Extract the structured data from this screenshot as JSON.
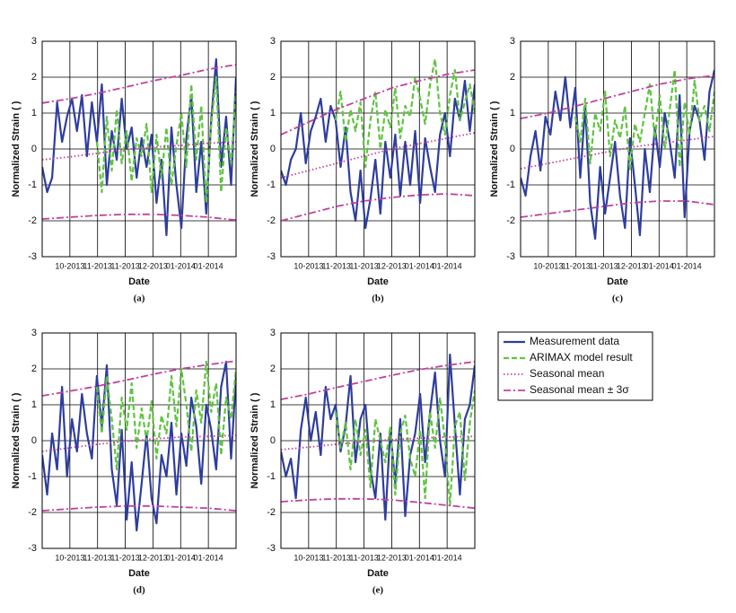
{
  "legend": [
    {
      "name": "Measurement data",
      "color": "#2e3d9e",
      "dash": "none",
      "width": 2.2
    },
    {
      "name": "ARIMAX model result",
      "color": "#5fc43f",
      "dash": "6 3",
      "width": 2.2
    },
    {
      "name": "Seasonal mean",
      "color": "#c2409e",
      "dash": "1.5 2.5",
      "width": 1.8
    },
    {
      "name": "Seasonal mean ± 3σ",
      "color": "#c2409e",
      "dash": "8 3 2 3",
      "width": 1.8
    }
  ],
  "chart_data": [
    {
      "type": "line",
      "caption": "(a)",
      "xlabel": "Date",
      "ylabel": "Normalized Strain ( )",
      "xlim": [
        0,
        7
      ],
      "ylim": [
        -3,
        3
      ],
      "yticks": [
        -3,
        -2,
        -1,
        0,
        1,
        2,
        3
      ],
      "xticks": [
        {
          "value": 1,
          "label": "10-2013"
        },
        {
          "value": 2,
          "label": "11-2013"
        },
        {
          "value": 3,
          "label": "11-2013"
        },
        {
          "value": 4,
          "label": "12-2013"
        },
        {
          "value": 5,
          "label": "01-2014"
        },
        {
          "value": 6,
          "label": "01-2014"
        }
      ],
      "series": [
        {
          "values": [
            -0.5,
            -1.2,
            -0.8,
            1.3,
            0.2,
            0.9,
            1.4,
            0.5,
            1.5,
            -0.2,
            1.3,
            0.2,
            1.8,
            -1.0,
            0.5,
            -0.3,
            1.4,
            0.0,
            0.6,
            -0.8,
            0.3,
            -0.5,
            0.4,
            -1.5,
            -0.3,
            -2.4,
            0.6,
            -1.0,
            -2.2,
            0.3,
            1.5,
            -1.2,
            0.2,
            -1.8,
            0.8,
            2.5,
            -0.5,
            0.9,
            -1.0,
            2.0
          ]
        },
        {
          "values": [
            null,
            null,
            null,
            null,
            null,
            null,
            null,
            null,
            null,
            null,
            null,
            0.2,
            -1.2,
            0.9,
            -0.6,
            1.1,
            -0.4,
            0.5,
            -0.9,
            0.3,
            -0.2,
            0.7,
            -1.2,
            0.4,
            -0.8,
            0.6,
            -1.0,
            0.1,
            1.0,
            -0.5,
            1.8,
            -0.3,
            1.2,
            -1.5,
            0.7,
            2.0,
            -1.2,
            0.6,
            -0.4,
            1.6
          ]
        },
        {
          "values": [
            -0.3,
            -0.22,
            -0.12,
            -0.02,
            0.05,
            0.1,
            0.16,
            0.2
          ]
        },
        {
          "values": [
            1.28,
            1.4,
            1.55,
            1.72,
            1.9,
            2.05,
            2.22,
            2.35
          ],
          "lower": [
            -1.95,
            -1.9,
            -1.85,
            -1.82,
            -1.82,
            -1.85,
            -1.9,
            -1.98
          ]
        }
      ]
    },
    {
      "type": "line",
      "caption": "(b)",
      "xlabel": "Date",
      "ylabel": "Normalized Strain ( )",
      "xlim": [
        0,
        7
      ],
      "ylim": [
        -3,
        3
      ],
      "yticks": [
        -3,
        -2,
        -1,
        0,
        1,
        2,
        3
      ],
      "xticks": [
        {
          "value": 1,
          "label": "10-2013"
        },
        {
          "value": 2,
          "label": "11-2013"
        },
        {
          "value": 3,
          "label": "11-2013"
        },
        {
          "value": 4,
          "label": "12-2013"
        },
        {
          "value": 5,
          "label": "01-2014"
        },
        {
          "value": 6,
          "label": "01-2014"
        }
      ],
      "series": [
        {
          "values": [
            -0.6,
            -1.0,
            -0.3,
            0.0,
            1.0,
            -0.4,
            0.5,
            0.9,
            1.4,
            0.2,
            1.2,
            0.8,
            -0.5,
            0.6,
            -1.2,
            -2.0,
            -0.6,
            -2.2,
            -1.4,
            -0.3,
            -1.8,
            0.2,
            -0.8,
            0.4,
            -1.3,
            0.2,
            -1.0,
            0.5,
            -1.5,
            0.3,
            -0.5,
            -1.2,
            0.4,
            1.0,
            -0.2,
            1.4,
            0.8,
            1.9,
            0.5,
            1.8
          ]
        },
        {
          "values": [
            null,
            null,
            null,
            null,
            null,
            null,
            null,
            null,
            null,
            null,
            null,
            0.8,
            1.6,
            0.2,
            1.1,
            0.5,
            1.3,
            -0.5,
            0.8,
            1.6,
            0.0,
            1.1,
            0.6,
            1.7,
            0.3,
            1.2,
            0.9,
            2.0,
            1.4,
            0.7,
            1.8,
            2.5,
            1.0,
            0.4,
            1.5,
            2.2,
            0.8,
            1.3,
            1.8,
            1.0
          ]
        },
        {
          "values": [
            -0.8,
            -0.6,
            -0.4,
            -0.2,
            0.0,
            0.15,
            0.3,
            0.45
          ]
        },
        {
          "values": [
            0.4,
            0.75,
            1.1,
            1.4,
            1.7,
            1.9,
            2.08,
            2.2
          ],
          "lower": [
            -2.0,
            -1.8,
            -1.6,
            -1.45,
            -1.35,
            -1.28,
            -1.25,
            -1.3
          ]
        }
      ]
    },
    {
      "type": "line",
      "caption": "(c)",
      "xlabel": "Date",
      "ylabel": "Normalized Strain ( )",
      "xlim": [
        0,
        7
      ],
      "ylim": [
        -3,
        3
      ],
      "yticks": [
        -3,
        -2,
        -1,
        0,
        1,
        2,
        3
      ],
      "xticks": [
        {
          "value": 1,
          "label": "10-2013"
        },
        {
          "value": 2,
          "label": "11-2013"
        },
        {
          "value": 3,
          "label": "11-2013"
        },
        {
          "value": 4,
          "label": "12-2013"
        },
        {
          "value": 5,
          "label": "01-2014"
        },
        {
          "value": 6,
          "label": "01-2014"
        }
      ],
      "series": [
        {
          "values": [
            -0.8,
            -1.3,
            -0.2,
            0.5,
            -0.6,
            0.9,
            0.4,
            1.6,
            0.8,
            2.0,
            0.6,
            1.7,
            -0.8,
            1.2,
            -1.5,
            -2.5,
            -0.5,
            -1.8,
            -0.8,
            0.2,
            -1.3,
            -2.2,
            0.3,
            -1.0,
            -2.4,
            0.0,
            -1.2,
            0.6,
            -0.5,
            1.0,
            0.2,
            -0.8,
            1.5,
            -1.9,
            0.5,
            1.2,
            0.8,
            -0.3,
            1.6,
            2.2
          ]
        },
        {
          "values": [
            null,
            null,
            null,
            null,
            null,
            null,
            null,
            null,
            null,
            null,
            null,
            0.9,
            0.2,
            1.4,
            -0.4,
            1.0,
            0.5,
            1.6,
            -0.2,
            0.8,
            0.3,
            1.2,
            -0.6,
            0.7,
            0.2,
            1.0,
            1.8,
            0.3,
            1.5,
            0.0,
            1.1,
            2.2,
            -0.5,
            1.3,
            0.4,
            1.9,
            0.8,
            1.2,
            0.5,
            1.6
          ]
        },
        {
          "values": [
            -0.55,
            -0.4,
            -0.25,
            -0.1,
            0.05,
            0.15,
            0.25,
            0.35
          ]
        },
        {
          "values": [
            0.85,
            1.0,
            1.2,
            1.4,
            1.6,
            1.8,
            1.95,
            2.05
          ],
          "lower": [
            -1.9,
            -1.8,
            -1.7,
            -1.6,
            -1.5,
            -1.45,
            -1.45,
            -1.55
          ]
        }
      ]
    },
    {
      "type": "line",
      "caption": "(d)",
      "xlabel": "Date",
      "ylabel": "Normalized Strain ( )",
      "xlim": [
        0,
        7
      ],
      "ylim": [
        -3,
        3
      ],
      "yticks": [
        -3,
        -2,
        -1,
        0,
        1,
        2,
        3
      ],
      "xticks": [
        {
          "value": 1,
          "label": "10-2013"
        },
        {
          "value": 2,
          "label": "11-2013"
        },
        {
          "value": 3,
          "label": "11-2013"
        },
        {
          "value": 4,
          "label": "12-2013"
        },
        {
          "value": 5,
          "label": "01-2014"
        },
        {
          "value": 6,
          "label": "01-2014"
        }
      ],
      "series": [
        {
          "values": [
            -0.4,
            -1.5,
            0.2,
            -0.8,
            1.5,
            -1.0,
            0.6,
            -0.3,
            1.3,
            0.2,
            -0.5,
            1.8,
            0.4,
            2.1,
            -0.8,
            -1.8,
            0.3,
            -2.2,
            -0.6,
            -2.5,
            -1.2,
            0.2,
            -1.6,
            -2.3,
            -0.4,
            -1.0,
            0.5,
            -1.5,
            0.2,
            -0.7,
            1.2,
            0.4,
            -1.2,
            1.0,
            0.3,
            -0.8,
            1.5,
            2.2,
            -0.5,
            1.8
          ]
        },
        {
          "values": [
            null,
            null,
            null,
            null,
            null,
            null,
            null,
            null,
            null,
            null,
            null,
            1.5,
            0.2,
            1.8,
            0.6,
            -0.8,
            1.2,
            0.3,
            1.6,
            -0.2,
            0.9,
            0.0,
            1.1,
            -0.5,
            0.7,
            0.2,
            1.8,
            0.4,
            2.0,
            1.0,
            -0.3,
            1.4,
            0.5,
            2.2,
            0.8,
            1.6,
            -0.4,
            1.2,
            0.6,
            2.0
          ]
        },
        {
          "values": [
            -0.3,
            -0.2,
            -0.1,
            -0.02,
            0.05,
            0.1,
            0.12,
            0.15
          ]
        },
        {
          "values": [
            1.25,
            1.38,
            1.52,
            1.68,
            1.85,
            2.0,
            2.12,
            2.22
          ],
          "lower": [
            -1.95,
            -1.9,
            -1.85,
            -1.82,
            -1.82,
            -1.85,
            -1.88,
            -1.95
          ]
        }
      ]
    },
    {
      "type": "line",
      "caption": "(e)",
      "xlabel": "Date",
      "ylabel": "Normalized Strain ( )",
      "xlim": [
        0,
        7
      ],
      "ylim": [
        -3,
        3
      ],
      "yticks": [
        -3,
        -2,
        -1,
        0,
        1,
        2,
        3
      ],
      "xticks": [
        {
          "value": 1,
          "label": "10-2013"
        },
        {
          "value": 2,
          "label": "11-2013"
        },
        {
          "value": 3,
          "label": "11-2013"
        },
        {
          "value": 4,
          "label": "12-2013"
        },
        {
          "value": 5,
          "label": "01-2014"
        },
        {
          "value": 6,
          "label": "01-2014"
        }
      ],
      "series": [
        {
          "values": [
            -0.3,
            -1.0,
            -0.5,
            -1.6,
            0.3,
            1.2,
            0.0,
            0.8,
            -0.4,
            1.5,
            0.6,
            1.0,
            -0.3,
            0.4,
            1.8,
            -0.6,
            0.6,
            1.0,
            -0.8,
            -1.6,
            0.2,
            -2.2,
            0.3,
            -1.2,
            0.6,
            -2.1,
            -0.4,
            0.2,
            1.3,
            -0.6,
            0.8,
            1.9,
            0.0,
            -1.0,
            2.4,
            0.4,
            -1.5,
            0.6,
            1.0,
            2.1
          ]
        },
        {
          "values": [
            null,
            null,
            null,
            null,
            null,
            null,
            null,
            null,
            null,
            null,
            null,
            0.8,
            -0.2,
            0.5,
            -0.8,
            0.6,
            -0.4,
            0.3,
            -1.3,
            0.6,
            0.0,
            -0.6,
            0.4,
            -1.5,
            0.2,
            0.7,
            -0.5,
            -1.0,
            0.3,
            -1.6,
            0.8,
            -0.2,
            1.2,
            0.0,
            -1.8,
            0.4,
            0.8,
            -1.1,
            0.5,
            1.4
          ]
        },
        {
          "values": [
            -0.25,
            -0.18,
            -0.1,
            -0.03,
            0.03,
            0.07,
            0.1,
            0.12
          ]
        },
        {
          "values": [
            1.15,
            1.3,
            1.48,
            1.65,
            1.82,
            1.98,
            2.1,
            2.2
          ],
          "lower": [
            -1.7,
            -1.65,
            -1.62,
            -1.62,
            -1.65,
            -1.72,
            -1.8,
            -1.88
          ]
        }
      ]
    }
  ]
}
